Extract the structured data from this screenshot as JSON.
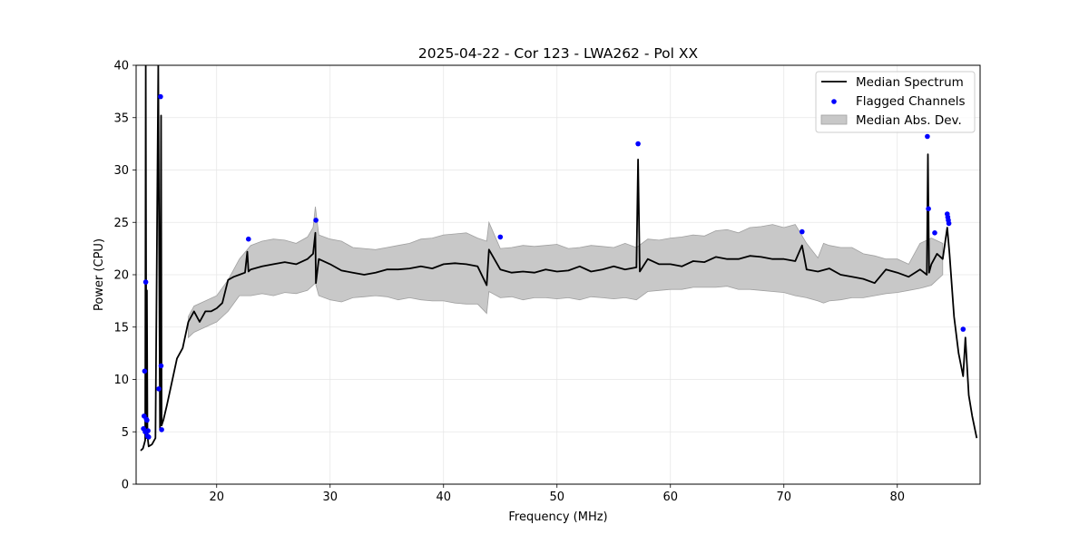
{
  "chart_data": {
    "type": "line",
    "title": "2025-04-22 - Cor 123 - LWA262 - Pol XX",
    "xlabel": "Frequency (MHz)",
    "ylabel": "Power (CPU)",
    "xlim": [
      12.9,
      87.3
    ],
    "ylim": [
      0,
      40
    ],
    "x_ticks": [
      20,
      30,
      40,
      50,
      60,
      70,
      80
    ],
    "y_ticks": [
      0,
      5,
      10,
      15,
      20,
      25,
      30,
      35,
      40
    ],
    "grid": true,
    "legend_position": "top-right",
    "legend": [
      "Median Spectrum",
      "Flagged Channels",
      "Median Abs. Dev."
    ],
    "colors": {
      "median": "#000000",
      "flagged": "#0000ff",
      "mad_fill": "#c8c8c8",
      "mad_edge": "#a0a0a0"
    },
    "series": [
      {
        "name": "Median Spectrum",
        "x": [
          13.3,
          13.5,
          13.6,
          13.7,
          13.75,
          13.8,
          13.85,
          13.9,
          14.0,
          14.3,
          14.6,
          14.85,
          15.0,
          15.1,
          15.15,
          15.2,
          15.3,
          15.6,
          16.0,
          16.5,
          17.0,
          17.5,
          18.0,
          18.5,
          19.0,
          19.5,
          20.0,
          20.5,
          21.0,
          21.5,
          22.0,
          22.5,
          22.7,
          22.8,
          23.0,
          24.0,
          25.0,
          26.0,
          27.0,
          28.0,
          28.5,
          28.7,
          28.75,
          29.0,
          30.0,
          31.0,
          32.0,
          33.0,
          34.0,
          35.0,
          36.0,
          37.0,
          38.0,
          39.0,
          40.0,
          41.0,
          42.0,
          43.0,
          43.8,
          44.0,
          45.0,
          46.0,
          47.0,
          48.0,
          49.0,
          50.0,
          51.0,
          52.0,
          53.0,
          54.0,
          55.0,
          56.0,
          57.0,
          57.15,
          57.3,
          58.0,
          59.0,
          60.0,
          61.0,
          62.0,
          63.0,
          64.0,
          65.0,
          66.0,
          67.0,
          68.0,
          69.0,
          70.0,
          71.0,
          71.6,
          72.0,
          73.0,
          74.0,
          75.0,
          76.0,
          77.0,
          78.0,
          79.0,
          80.0,
          81.0,
          82.0,
          82.6,
          82.7,
          82.8,
          83.0,
          83.5,
          84.0,
          84.4,
          84.6,
          85.0,
          85.4,
          85.8,
          86.0,
          86.3,
          86.6,
          87.0
        ],
        "y": [
          3.2,
          3.4,
          3.8,
          4.2,
          40,
          4.4,
          18.5,
          4.6,
          3.6,
          3.8,
          4.4,
          40,
          5.2,
          35.2,
          5.6,
          5.8,
          6.1,
          7.5,
          9.5,
          12.0,
          13.0,
          15.5,
          16.5,
          15.5,
          16.5,
          16.5,
          16.8,
          17.3,
          19.5,
          19.8,
          20.0,
          20.2,
          22.2,
          20.3,
          20.5,
          20.8,
          21.0,
          21.2,
          21.0,
          21.5,
          22.0,
          24.0,
          19.2,
          21.5,
          21.0,
          20.4,
          20.2,
          20.0,
          20.2,
          20.5,
          20.5,
          20.6,
          20.8,
          20.6,
          21.0,
          21.1,
          21.0,
          20.8,
          19.0,
          22.4,
          20.5,
          20.2,
          20.3,
          20.2,
          20.5,
          20.3,
          20.4,
          20.8,
          20.3,
          20.5,
          20.8,
          20.5,
          20.7,
          31.0,
          20.3,
          21.5,
          21.0,
          21.0,
          20.8,
          21.3,
          21.2,
          21.7,
          21.5,
          21.5,
          21.8,
          21.7,
          21.5,
          21.5,
          21.3,
          22.8,
          20.5,
          20.3,
          20.6,
          20.0,
          19.8,
          19.6,
          19.2,
          20.5,
          20.2,
          19.8,
          20.5,
          20.0,
          31.5,
          20.2,
          21.0,
          22.0,
          21.5,
          24.5,
          22.0,
          16.0,
          12.5,
          10.3,
          14.0,
          8.5,
          6.5,
          4.4
        ]
      },
      {
        "name": "Median Abs. Dev.",
        "x": [
          17.5,
          18.0,
          19.0,
          20.0,
          21.0,
          22.0,
          23.0,
          24.0,
          25.0,
          26.0,
          27.0,
          28.0,
          28.5,
          28.7,
          29.0,
          30.0,
          31.0,
          32.0,
          33.0,
          34.0,
          35.0,
          36.0,
          37.0,
          38.0,
          39.0,
          40.0,
          41.0,
          42.0,
          43.0,
          43.8,
          44.0,
          45.0,
          46.0,
          47.0,
          48.0,
          49.0,
          50.0,
          51.0,
          52.0,
          53.0,
          54.0,
          55.0,
          56.0,
          57.0,
          58.0,
          59.0,
          60.0,
          61.0,
          62.0,
          63.0,
          64.0,
          65.0,
          66.0,
          67.0,
          68.0,
          69.0,
          70.0,
          71.0,
          72.0,
          73.0,
          73.5,
          74.0,
          75.0,
          76.0,
          77.0,
          78.0,
          79.0,
          80.0,
          81.0,
          82.0,
          83.0,
          84.0
        ],
        "upper": [
          16.0,
          17.0,
          17.5,
          18.0,
          19.5,
          21.5,
          22.8,
          23.2,
          23.4,
          23.3,
          23.0,
          23.6,
          24.5,
          26.5,
          23.8,
          23.4,
          23.2,
          22.6,
          22.5,
          22.4,
          22.6,
          22.8,
          23.0,
          23.4,
          23.5,
          23.8,
          23.9,
          24.0,
          23.5,
          23.2,
          25.0,
          22.5,
          22.6,
          22.8,
          22.7,
          22.8,
          22.9,
          22.5,
          22.6,
          22.8,
          22.7,
          22.6,
          23.0,
          22.6,
          23.4,
          23.3,
          23.5,
          23.6,
          23.8,
          23.7,
          24.2,
          24.3,
          24.0,
          24.5,
          24.6,
          24.8,
          24.5,
          24.8,
          23.0,
          21.6,
          23.0,
          22.8,
          22.6,
          22.6,
          22.0,
          21.8,
          21.5,
          21.5,
          21.0,
          23.0,
          23.5,
          23.0
        ],
        "lower": [
          14.0,
          14.5,
          15.0,
          15.5,
          16.5,
          18.0,
          18.0,
          18.2,
          18.0,
          18.3,
          18.2,
          18.5,
          19.0,
          19.2,
          18.0,
          17.6,
          17.4,
          17.8,
          17.9,
          18.0,
          17.9,
          17.6,
          17.8,
          17.6,
          17.5,
          17.5,
          17.3,
          17.2,
          17.2,
          16.3,
          18.4,
          17.8,
          17.9,
          17.6,
          17.8,
          17.8,
          17.7,
          17.8,
          17.6,
          17.9,
          17.8,
          17.7,
          17.8,
          17.6,
          18.4,
          18.5,
          18.6,
          18.6,
          18.8,
          18.8,
          18.8,
          18.9,
          18.6,
          18.6,
          18.5,
          18.4,
          18.3,
          18.0,
          17.8,
          17.5,
          17.3,
          17.5,
          17.6,
          17.8,
          17.8,
          18.0,
          18.2,
          18.3,
          18.5,
          18.7,
          19.0,
          20.0
        ]
      },
      {
        "name": "Flagged Channels",
        "x": [
          13.55,
          13.6,
          13.65,
          13.7,
          13.75,
          13.8,
          13.85,
          13.9,
          13.95,
          14.0,
          14.9,
          15.05,
          15.1,
          15.15,
          22.8,
          28.75,
          45.0,
          57.15,
          71.6,
          82.65,
          82.75,
          83.3,
          84.4,
          84.45,
          84.5,
          84.55,
          85.8
        ],
        "y": [
          5.3,
          6.5,
          10.8,
          5.0,
          19.3,
          6.2,
          6.1,
          4.6,
          5.1,
          4.5,
          9.1,
          37.0,
          11.3,
          5.2,
          23.4,
          25.2,
          23.6,
          32.5,
          24.1,
          33.2,
          26.3,
          24.0,
          25.8,
          25.5,
          25.2,
          24.9,
          14.8
        ]
      }
    ]
  }
}
